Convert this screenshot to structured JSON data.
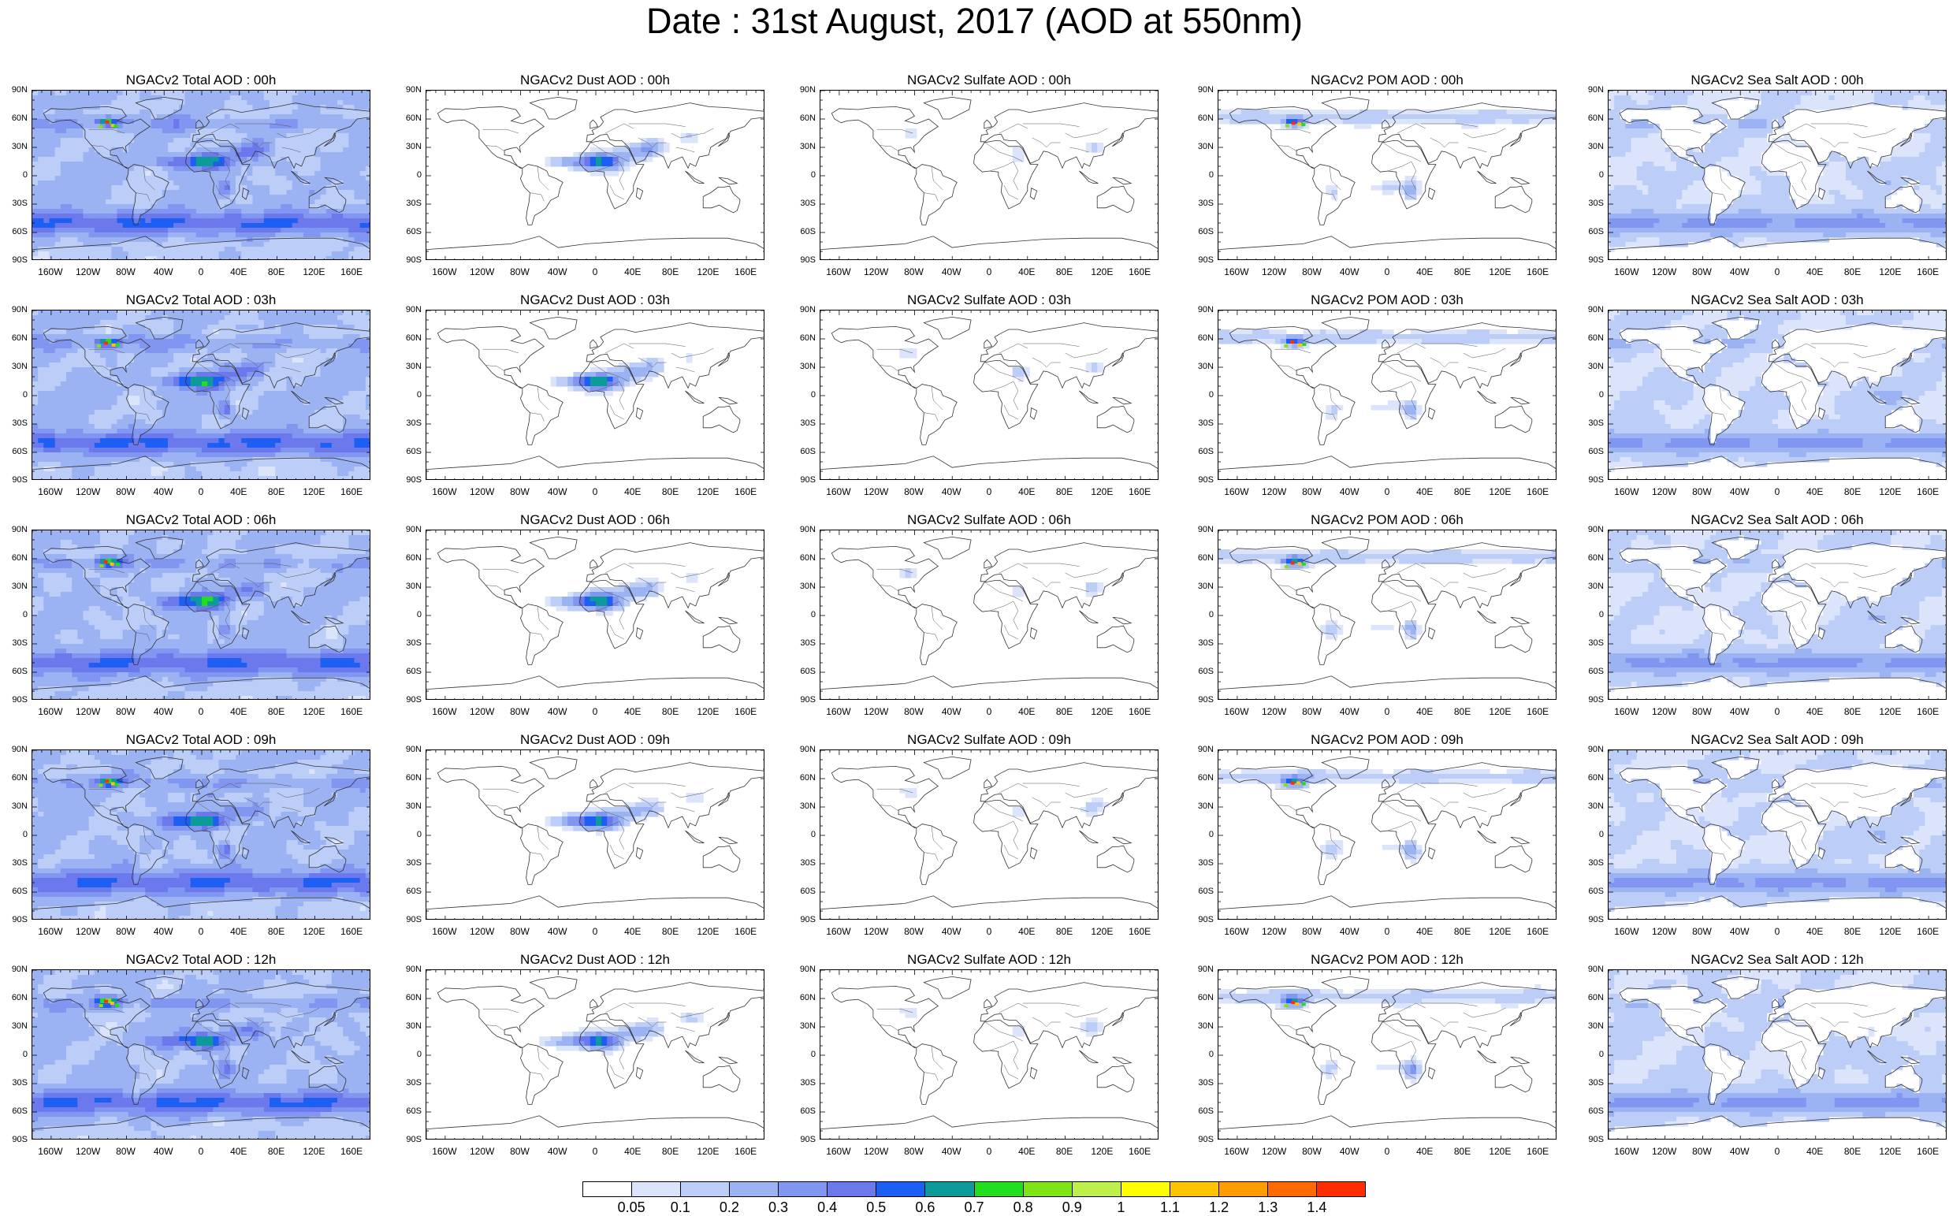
{
  "title": "Date : 31st August, 2017 (AOD at 550nm)",
  "lat_labels": [
    "90N",
    "60N",
    "30N",
    "0",
    "30S",
    "60S",
    "90S"
  ],
  "lon_labels": [
    "160W",
    "120W",
    "80W",
    "40W",
    "0",
    "40E",
    "80E",
    "120E",
    "160E"
  ],
  "columns": [
    {
      "key": "total",
      "coverage": "heavy",
      "hotspots": true
    },
    {
      "key": "dust",
      "coverage": "dust",
      "hotspots": false
    },
    {
      "key": "sulfate",
      "coverage": "light",
      "hotspots": false
    },
    {
      "key": "pom",
      "coverage": "pom",
      "hotspots": true
    },
    {
      "key": "seasalt",
      "coverage": "ocean",
      "hotspots": false
    }
  ],
  "panels": [
    [
      "NGACv2 Total AOD : 00h",
      "NGACv2 Dust AOD : 00h",
      "NGACv2 Sulfate AOD : 00h",
      "NGACv2 POM AOD : 00h",
      "NGACv2 Sea Salt AOD : 00h"
    ],
    [
      "NGACv2 Total AOD : 03h",
      "NGACv2 Dust AOD : 03h",
      "NGACv2 Sulfate AOD : 03h",
      "NGACv2 POM AOD : 03h",
      "NGACv2 Sea Salt AOD : 03h"
    ],
    [
      "NGACv2 Total AOD : 06h",
      "NGACv2 Dust AOD : 06h",
      "NGACv2 Sulfate AOD : 06h",
      "NGACv2 POM AOD : 06h",
      "NGACv2 Sea Salt AOD : 06h"
    ],
    [
      "NGACv2 Total AOD : 09h",
      "NGACv2 Dust AOD : 09h",
      "NGACv2 Sulfate AOD : 09h",
      "NGACv2 POM AOD : 09h",
      "NGACv2 Sea Salt  AOD : 09h"
    ],
    [
      "NGACv2 Total AOD  : 12h",
      "NGACv2 Dust AOD : 12h",
      "NGACv2 Sulfate AOD : 12h",
      "NGACv2 POM  AOD : 12h",
      "NGACv2 Sea Salt  AOD : 12h"
    ]
  ],
  "colorbar": {
    "colors": [
      "#ffffff",
      "#dbe4fb",
      "#bccdf7",
      "#9cb3f3",
      "#8196f0",
      "#6b79ec",
      "#1d5ff2",
      "#0d9a9a",
      "#22dd20",
      "#7fe414",
      "#bdf04b",
      "#ffff00",
      "#ffc400",
      "#ff9d00",
      "#ff6a00",
      "#ff2d00"
    ],
    "labels": [
      "0.05",
      "0.1",
      "0.2",
      "0.3",
      "0.4",
      "0.5",
      "0.6",
      "0.7",
      "0.8",
      "0.9",
      "1",
      "1.1",
      "1.2",
      "1.3",
      "1.4"
    ]
  }
}
